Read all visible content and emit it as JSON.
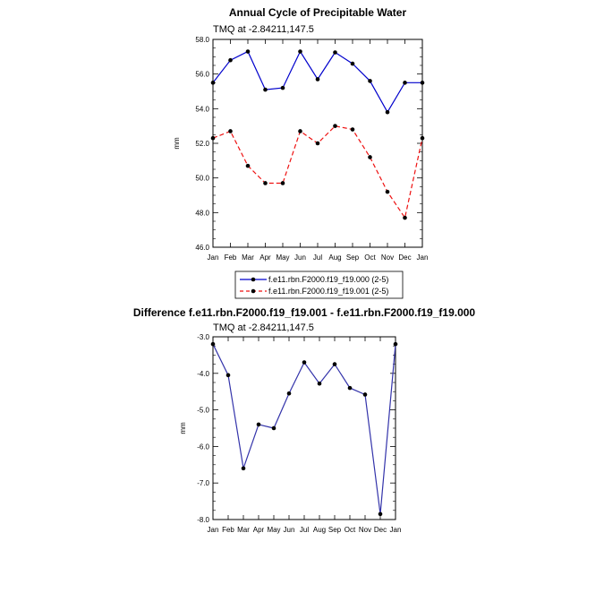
{
  "colors": {
    "model000": "#0000cc",
    "model001": "#ee1111",
    "diff": "#3333aa"
  },
  "chart_data": [
    {
      "type": "line",
      "title": "Annual Cycle of Precipitable Water",
      "subtitle": "TMQ at -2.84211,147.5",
      "ylabel": "mm",
      "ylim": [
        46.0,
        58.0
      ],
      "yticks": [
        "46.0",
        "48.0",
        "50.0",
        "52.0",
        "54.0",
        "56.0",
        "58.0"
      ],
      "categories": [
        "Jan",
        "Feb",
        "Mar",
        "Apr",
        "May",
        "Jun",
        "Jul",
        "Aug",
        "Sep",
        "Oct",
        "Nov",
        "Dec",
        "Jan"
      ],
      "series": [
        {
          "name": "f.e11.rbn.F2000.f19_f19.000 (2-5)",
          "style": "solid",
          "values": [
            55.5,
            56.8,
            57.3,
            55.1,
            55.2,
            57.3,
            55.7,
            57.25,
            56.6,
            55.6,
            53.8,
            55.5,
            55.5
          ]
        },
        {
          "name": "f.e11.rbn.F2000.f19_f19.001 (2-5)",
          "style": "dashed",
          "values": [
            52.3,
            52.7,
            50.7,
            49.7,
            49.7,
            52.7,
            52.0,
            53.0,
            52.8,
            51.2,
            49.2,
            47.7,
            52.3
          ]
        }
      ],
      "legend_position": "bottom"
    },
    {
      "type": "line",
      "title": "Difference f.e11.rbn.F2000.f19_f19.001 - f.e11.rbn.F2000.f19_f19.000",
      "subtitle": "TMQ at -2.84211,147.5",
      "ylabel": "mm",
      "ylim": [
        -8.0,
        -3.0
      ],
      "yticks": [
        "-8.0",
        "-7.0",
        "-6.0",
        "-5.0",
        "-4.0",
        "-3.0"
      ],
      "categories": [
        "Jan",
        "Feb",
        "Mar",
        "Apr",
        "May",
        "Jun",
        "Jul",
        "Aug",
        "Sep",
        "Oct",
        "Nov",
        "Dec",
        "Jan"
      ],
      "series": [
        {
          "values": [
            -3.2,
            -4.05,
            -6.6,
            -5.4,
            -5.5,
            -4.55,
            -3.7,
            -4.28,
            -3.75,
            -4.4,
            -4.58,
            -7.85,
            -3.2
          ]
        }
      ]
    }
  ]
}
